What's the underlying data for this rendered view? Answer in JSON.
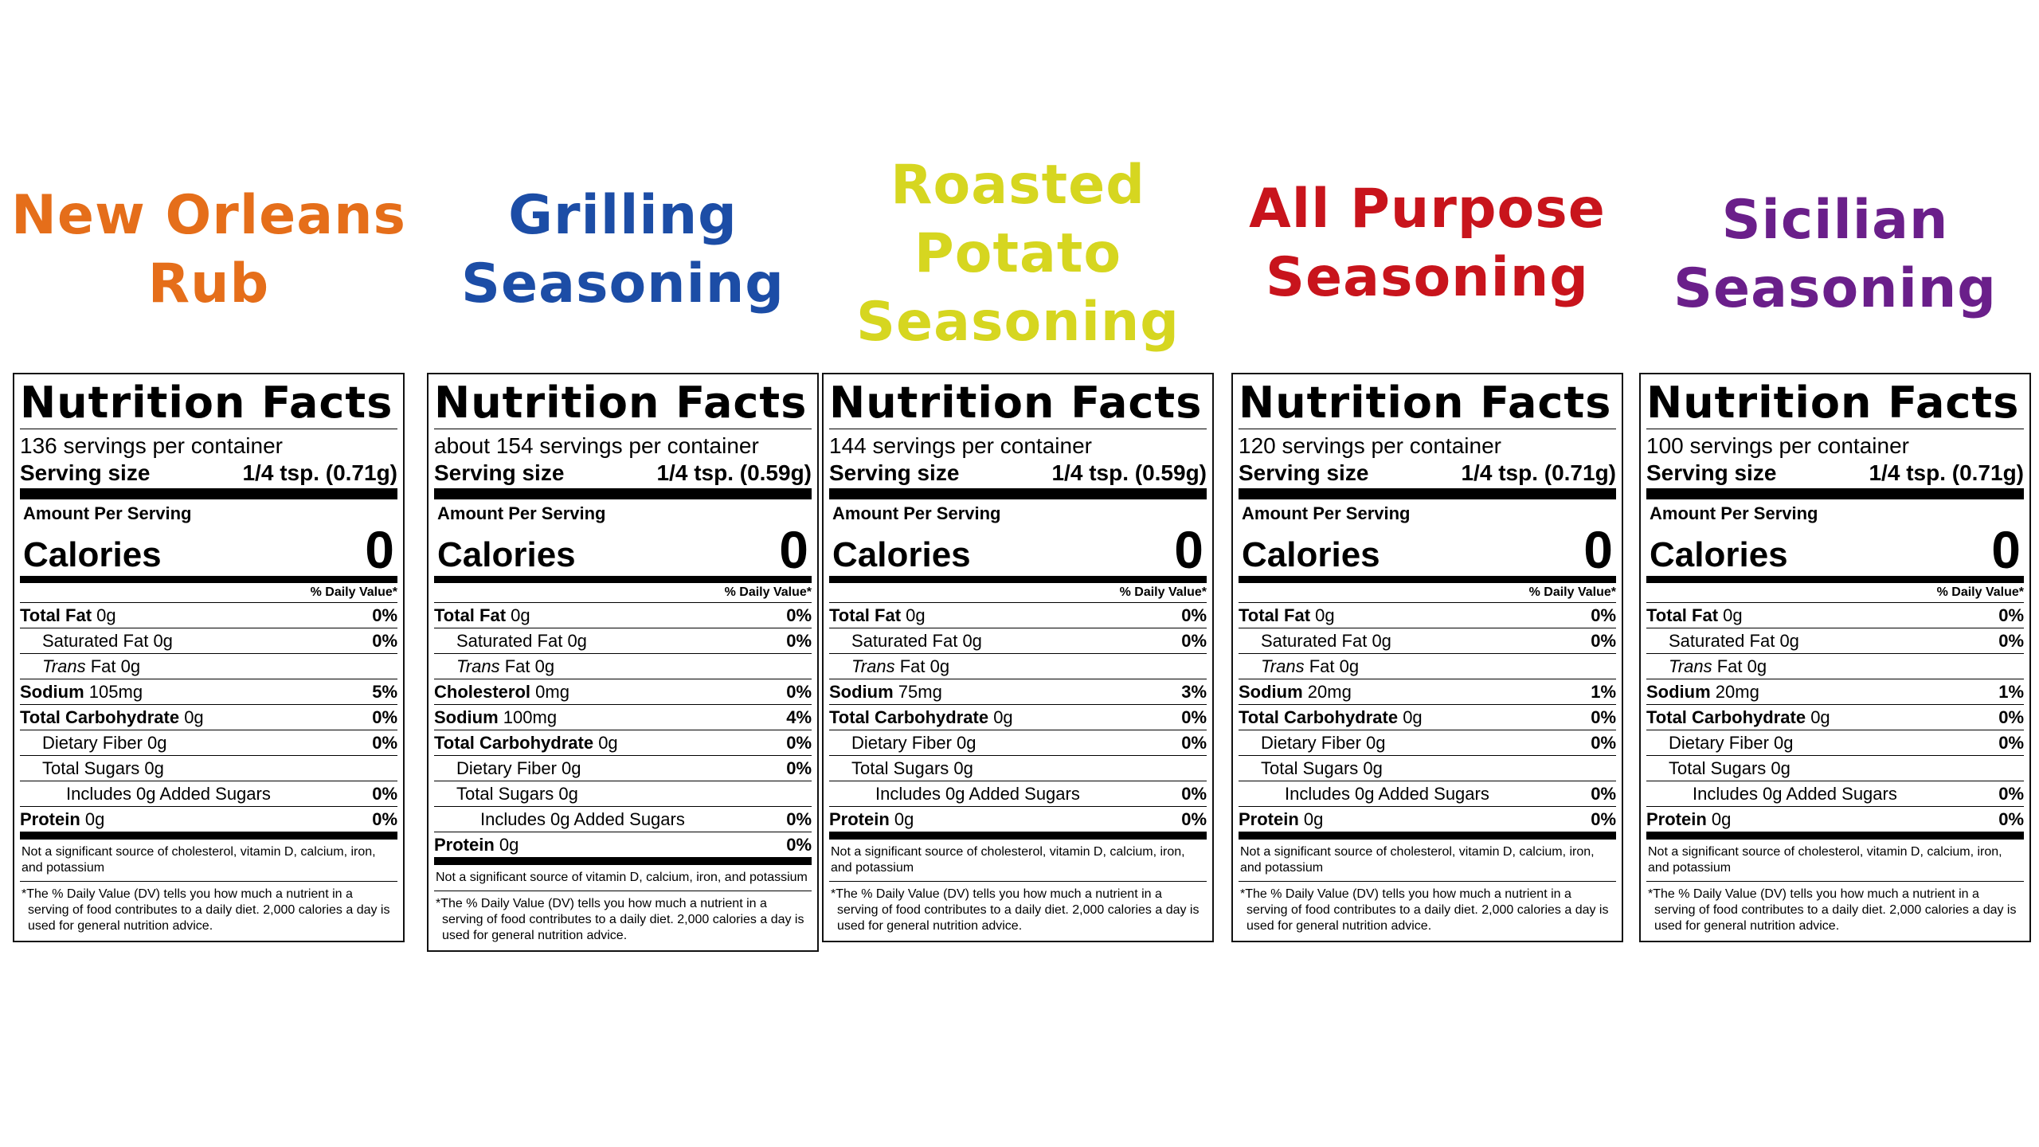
{
  "labels": [
    {
      "title_lines": [
        "New Orleans",
        "Rub"
      ],
      "title_color": "#e56e1a",
      "heading": "Nutrition Facts",
      "servings": "136 servings per container",
      "serving_size_label": "Serving size",
      "serving_size_value": "1/4 tsp. (0.71g)",
      "amount_per_serving": "Amount Per Serving",
      "calories_label": "Calories",
      "calories_value": "0",
      "dv_header": "% Daily Value*",
      "rows": [
        {
          "name": "Total Fat",
          "amount": "0g",
          "dv": "0%"
        },
        {
          "name": "Saturated Fat",
          "amount": "0g",
          "dv": "0%"
        },
        {
          "name": "Trans",
          "amount": "Fat 0g",
          "dv": ""
        },
        {
          "name": "Sodium",
          "amount": "105mg",
          "dv": "5%"
        },
        {
          "name": "Total Carbohydrate",
          "amount": "0g",
          "dv": "0%"
        },
        {
          "name": "Dietary Fiber",
          "amount": "0g",
          "dv": "0%"
        },
        {
          "name": "Total Sugars",
          "amount": "0g",
          "dv": ""
        },
        {
          "name": "Includes 0g Added Sugars",
          "amount": "",
          "dv": "0%"
        },
        {
          "name": "Protein",
          "amount": "0g",
          "dv": "0%"
        }
      ],
      "footnote": "Not a significant source of cholesterol, vitamin D, calcium, iron, and potassium",
      "disclaimer": "*The % Daily Value (DV) tells you how much a nutrient in a serving of food contributes to a daily diet. 2,000 calories a day is used for general nutrition advice."
    },
    {
      "title_lines": [
        "Grilling",
        "Seasoning"
      ],
      "title_color": "#1c4da6",
      "heading": "Nutrition Facts",
      "servings": "about 154 servings per container",
      "serving_size_label": "Serving size",
      "serving_size_value": "1/4 tsp. (0.59g)",
      "amount_per_serving": "Amount Per Serving",
      "calories_label": "Calories",
      "calories_value": "0",
      "dv_header": "% Daily Value*",
      "rows": [
        {
          "name": "Total Fat",
          "amount": "0g",
          "dv": "0%"
        },
        {
          "name": "Saturated Fat",
          "amount": "0g",
          "dv": "0%"
        },
        {
          "name": "Trans",
          "amount": "Fat 0g",
          "dv": ""
        },
        {
          "name": "Cholesterol",
          "amount": "0mg",
          "dv": "0%"
        },
        {
          "name": "Sodium",
          "amount": "100mg",
          "dv": "4%"
        },
        {
          "name": "Total Carbohydrate",
          "amount": "0g",
          "dv": "0%"
        },
        {
          "name": "Dietary Fiber",
          "amount": "0g",
          "dv": "0%"
        },
        {
          "name": "Total Sugars",
          "amount": "0g",
          "dv": ""
        },
        {
          "name": "Includes 0g Added Sugars",
          "amount": "",
          "dv": "0%"
        },
        {
          "name": "Protein",
          "amount": "0g",
          "dv": "0%"
        }
      ],
      "footnote": "Not a significant source of vitamin D, calcium, iron, and potassium",
      "disclaimer": "*The % Daily Value (DV) tells you how much a nutrient in a serving of food contributes to a daily diet. 2,000 calories a day is used for general nutrition advice."
    },
    {
      "title_lines": [
        "Roasted",
        "Potato",
        "Seasoning"
      ],
      "title_color": "#d6d620",
      "heading": "Nutrition Facts",
      "servings": "144 servings per container",
      "serving_size_label": "Serving size",
      "serving_size_value": "1/4 tsp. (0.59g)",
      "amount_per_serving": "Amount Per Serving",
      "calories_label": "Calories",
      "calories_value": "0",
      "dv_header": "% Daily Value*",
      "rows": [
        {
          "name": "Total Fat",
          "amount": "0g",
          "dv": "0%"
        },
        {
          "name": "Saturated Fat",
          "amount": "0g",
          "dv": "0%"
        },
        {
          "name": "Trans",
          "amount": "Fat 0g",
          "dv": ""
        },
        {
          "name": "Sodium",
          "amount": "75mg",
          "dv": "3%"
        },
        {
          "name": "Total Carbohydrate",
          "amount": "0g",
          "dv": "0%"
        },
        {
          "name": "Dietary Fiber",
          "amount": "0g",
          "dv": "0%"
        },
        {
          "name": "Total Sugars",
          "amount": "0g",
          "dv": ""
        },
        {
          "name": "Includes 0g Added Sugars",
          "amount": "",
          "dv": "0%"
        },
        {
          "name": "Protein",
          "amount": "0g",
          "dv": "0%"
        }
      ],
      "footnote": "Not a significant source of cholesterol, vitamin D, calcium, iron, and potassium",
      "disclaimer": "*The % Daily Value (DV) tells you how much a nutrient in a serving of food contributes to a daily diet. 2,000 calories a day is used for general nutrition advice."
    },
    {
      "title_lines": [
        "All Purpose",
        "Seasoning"
      ],
      "title_color": "#c8141c",
      "heading": "Nutrition Facts",
      "servings": "120 servings per container",
      "serving_size_label": "Serving size",
      "serving_size_value": "1/4 tsp. (0.71g)",
      "amount_per_serving": "Amount Per Serving",
      "calories_label": "Calories",
      "calories_value": "0",
      "dv_header": "% Daily Value*",
      "rows": [
        {
          "name": "Total Fat",
          "amount": "0g",
          "dv": "0%"
        },
        {
          "name": "Saturated Fat",
          "amount": "0g",
          "dv": "0%"
        },
        {
          "name": "Trans",
          "amount": "Fat 0g",
          "dv": ""
        },
        {
          "name": "Sodium",
          "amount": "20mg",
          "dv": "1%"
        },
        {
          "name": "Total Carbohydrate",
          "amount": "0g",
          "dv": "0%"
        },
        {
          "name": "Dietary Fiber",
          "amount": "0g",
          "dv": "0%"
        },
        {
          "name": "Total Sugars",
          "amount": "0g",
          "dv": ""
        },
        {
          "name": "Includes 0g Added Sugars",
          "amount": "",
          "dv": "0%"
        },
        {
          "name": "Protein",
          "amount": "0g",
          "dv": "0%"
        }
      ],
      "footnote": "Not a significant source of cholesterol, vitamin D, calcium, iron, and potassium",
      "disclaimer": "*The % Daily Value (DV) tells you how much a nutrient in a serving of food contributes to a daily diet. 2,000 calories a day is used for general nutrition advice."
    },
    {
      "title_lines": [
        "Sicilian",
        "Seasoning"
      ],
      "title_color": "#6a1f8a",
      "heading": "Nutrition Facts",
      "servings": "100 servings per container",
      "serving_size_label": "Serving size",
      "serving_size_value": "1/4 tsp. (0.71g)",
      "amount_per_serving": "Amount Per Serving",
      "calories_label": "Calories",
      "calories_value": "0",
      "dv_header": "% Daily Value*",
      "rows": [
        {
          "name": "Total Fat",
          "amount": "0g",
          "dv": "0%"
        },
        {
          "name": "Saturated Fat",
          "amount": "0g",
          "dv": "0%"
        },
        {
          "name": "Trans",
          "amount": "Fat 0g",
          "dv": ""
        },
        {
          "name": "Sodium",
          "amount": "20mg",
          "dv": "1%"
        },
        {
          "name": "Total Carbohydrate",
          "amount": "0g",
          "dv": "0%"
        },
        {
          "name": "Dietary Fiber",
          "amount": "0g",
          "dv": "0%"
        },
        {
          "name": "Total Sugars",
          "amount": "0g",
          "dv": ""
        },
        {
          "name": "Includes 0g Added Sugars",
          "amount": "",
          "dv": "0%"
        },
        {
          "name": "Protein",
          "amount": "0g",
          "dv": "0%"
        }
      ],
      "footnote": "Not a significant source of cholesterol, vitamin D, calcium, iron, and potassium",
      "disclaimer": "*The % Daily Value (DV) tells you how much a nutrient in a serving of food contributes to a daily diet. 2,000 calories a day is used for general nutrition advice."
    }
  ]
}
